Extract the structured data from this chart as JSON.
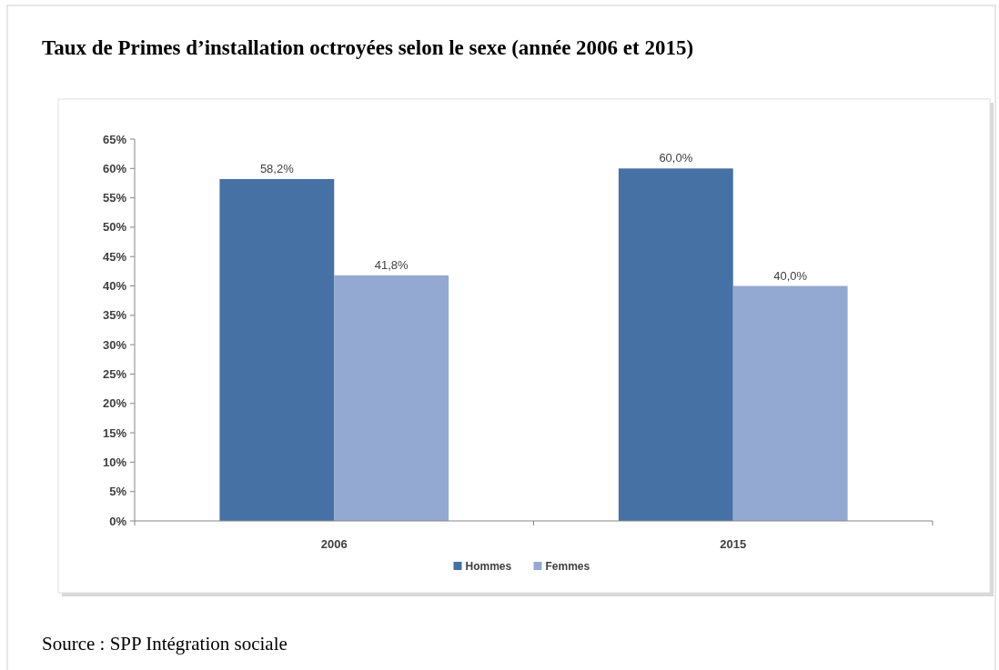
{
  "chart_data": {
    "type": "bar",
    "title": "Taux de Primes d’installation octroyées selon le sexe (année 2006 et 2015)",
    "categories": [
      "2006",
      "2015"
    ],
    "series": [
      {
        "name": "Hommes",
        "color": "#4571a5",
        "values": [
          58.2,
          60.0
        ],
        "value_labels": [
          "58,2%",
          "60,0%"
        ]
      },
      {
        "name": "Femmes",
        "color": "#94a9d1",
        "values": [
          41.8,
          40.0
        ],
        "value_labels": [
          "41,8%",
          "40,0%"
        ]
      }
    ],
    "ylim": [
      0,
      65
    ],
    "yticks": [
      {
        "value": 0,
        "label": "0%"
      },
      {
        "value": 5,
        "label": "5%"
      },
      {
        "value": 10,
        "label": "10%"
      },
      {
        "value": 15,
        "label": "15%"
      },
      {
        "value": 20,
        "label": "20%"
      },
      {
        "value": 25,
        "label": "25%"
      },
      {
        "value": 30,
        "label": "30%"
      },
      {
        "value": 35,
        "label": "35%"
      },
      {
        "value": 40,
        "label": "40%"
      },
      {
        "value": 45,
        "label": "45%"
      },
      {
        "value": 50,
        "label": "50%"
      },
      {
        "value": 55,
        "label": "55%"
      },
      {
        "value": 60,
        "label": "60%"
      },
      {
        "value": 65,
        "label": "65%"
      }
    ],
    "grid": false,
    "legend": "bottom",
    "annotations": [
      "Source : SPP Intégration sociale"
    ]
  }
}
